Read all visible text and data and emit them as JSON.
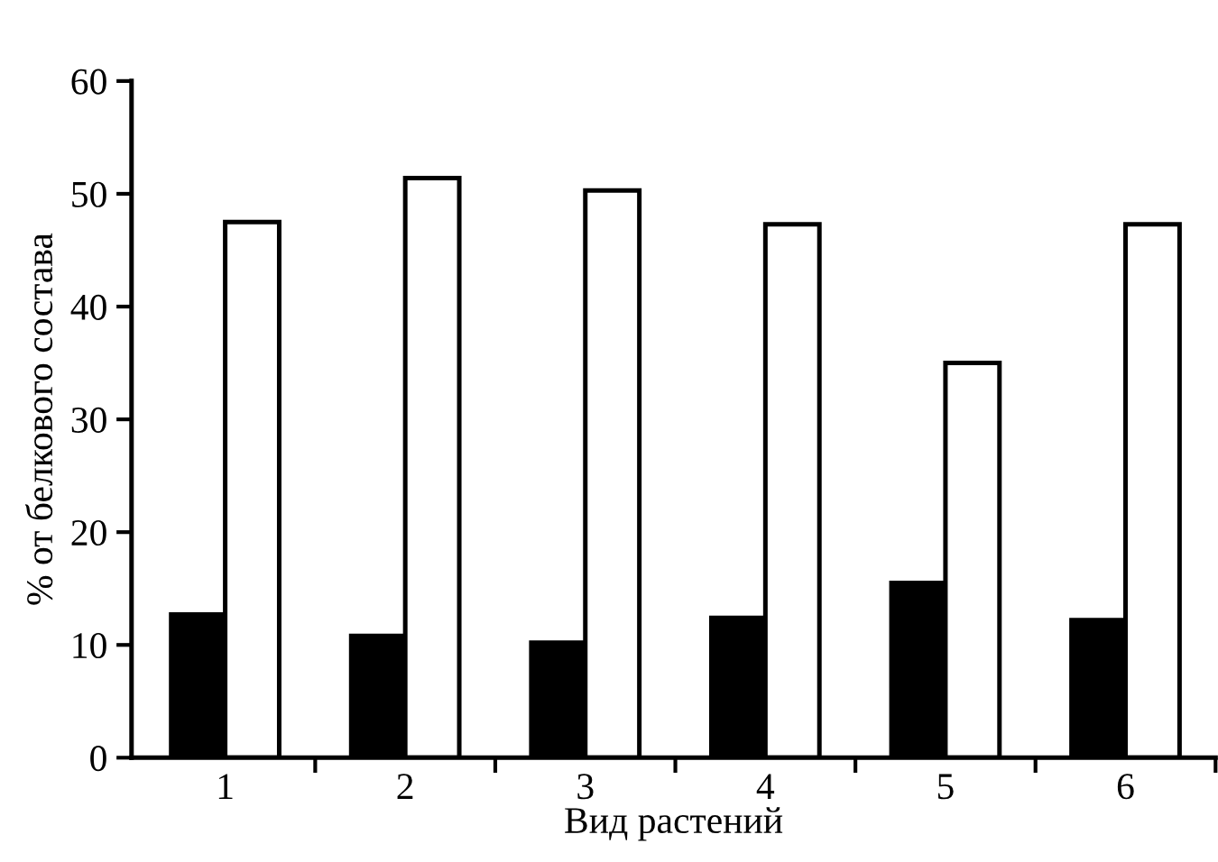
{
  "chart_data": {
    "type": "bar",
    "xlabel": "Вид растений",
    "ylabel": "% от белкового состава",
    "categories": [
      "1",
      "2",
      "3",
      "4",
      "5",
      "6"
    ],
    "series": [
      {
        "color": "#000000",
        "values": [
          12.7,
          10.8,
          10.2,
          12.4,
          15.5,
          12.2
        ]
      },
      {
        "color": "#ffffff",
        "values": [
          47.5,
          51.4,
          50.3,
          47.3,
          35.0,
          47.3
        ]
      }
    ],
    "ylim": [
      0,
      60
    ],
    "yticks": [
      0,
      10,
      20,
      30,
      40,
      50,
      60
    ],
    "grid": false,
    "legend": false
  }
}
